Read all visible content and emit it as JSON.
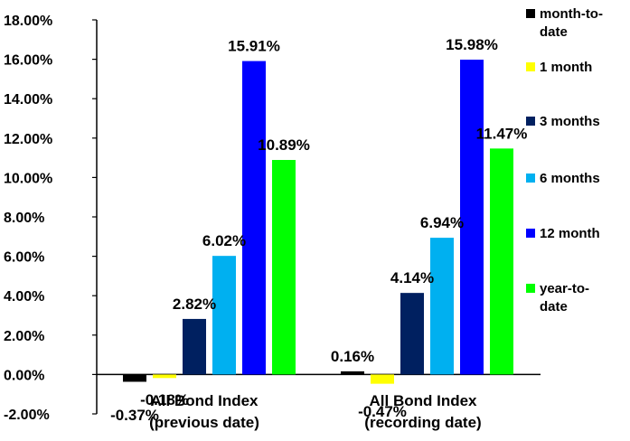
{
  "chart_data": {
    "type": "bar",
    "categories": [
      [
        "All Bond Index",
        "(previous date)"
      ],
      [
        "All Bond Index",
        "(recording date)"
      ]
    ],
    "series": [
      {
        "name": "month-to-date",
        "legend_lines": [
          "month-to-",
          "date"
        ],
        "color": "#000000",
        "values": [
          -0.37,
          0.16
        ],
        "labels": [
          "-0.37%",
          "0.16%"
        ]
      },
      {
        "name": "1 month",
        "legend_lines": [
          "1 month"
        ],
        "color": "#FFFF00",
        "values": [
          -0.18,
          -0.47
        ],
        "labels": [
          "-0.18%",
          "-0.47%"
        ]
      },
      {
        "name": "3 months",
        "legend_lines": [
          "3 months"
        ],
        "color": "#002060",
        "values": [
          2.82,
          4.14
        ],
        "labels": [
          "2.82%",
          "4.14%"
        ]
      },
      {
        "name": "6 months",
        "legend_lines": [
          "6 months"
        ],
        "color": "#00B0F0",
        "values": [
          6.02,
          6.94
        ],
        "labels": [
          "6.02%",
          "6.94%"
        ]
      },
      {
        "name": "12 month",
        "legend_lines": [
          "12 month"
        ],
        "color": "#0000FF",
        "values": [
          15.91,
          15.98
        ],
        "labels": [
          "15.91%",
          "15.98%"
        ]
      },
      {
        "name": "year-to-date",
        "legend_lines": [
          "year-to-",
          "date"
        ],
        "color": "#00FF00",
        "values": [
          10.89,
          11.47
        ],
        "labels": [
          "10.89%",
          "11.47%"
        ]
      }
    ],
    "ylim": [
      -2,
      18
    ],
    "ytick_step": 2,
    "ytick_labels": [
      "-2.00%",
      "0.00%",
      "2.00%",
      "4.00%",
      "6.00%",
      "8.00%",
      "10.00%",
      "12.00%",
      "14.00%",
      "16.00%",
      "18.00%"
    ],
    "grid": false,
    "legend_position": "right"
  }
}
